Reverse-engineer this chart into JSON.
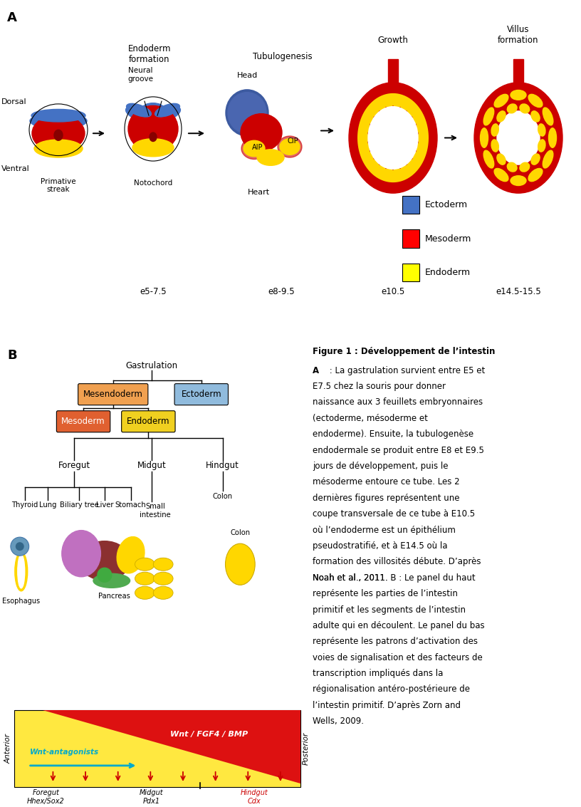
{
  "fig_width": 8.16,
  "fig_height": 11.33,
  "bg_color": "#ffffff",
  "legend_items": [
    {
      "label": "Ectoderm",
      "color": "#4472C4"
    },
    {
      "label": "Mesoderm",
      "color": "#FF0000"
    },
    {
      "label": "Endoderm",
      "color": "#FFFF00"
    }
  ],
  "mesendoderm_color": "#F0A050",
  "ectoderm_color": "#90BBDD",
  "mesoderm_color": "#E06030",
  "endoderm_color": "#F0D020",
  "caption_title": "Figure 1 : Développement de l’intestin",
  "caption_text_lines": [
    "A : La gastrulation survient entre E5 et",
    "E7.5 chez la souris pour donner",
    "naissance aux 3 feuillets embryonnaires",
    "(ectoderme, mésoderme et",
    "endoderme). Ensuite, la tubulogenèse",
    "endodermale se produit entre E8 et E9.5",
    "jours de développement, puis le",
    "mésoderme entoure ce tube. Les 2",
    "dernières figures représentent une",
    "coupe transversale de ce tube à E10.5",
    "où l’endoderme est un épithélium",
    "pseudostratifié, et à E14.5 où la",
    "formation des villosités débute. D’après",
    "Noah et al., 2011. B : Le panel du haut",
    "représente les parties de l’intestin",
    "primitif et les segments de l’intestin",
    "adulte qui en découlent. Le panel du bas",
    "représente les patrons d’activation des",
    "voies de signalisation et des facteurs de",
    "transcription impliqués dans la",
    "régionalisation antéro-postérieure de",
    "l’intestin primitif. D’après Zorn and",
    "Wells, 2009."
  ]
}
